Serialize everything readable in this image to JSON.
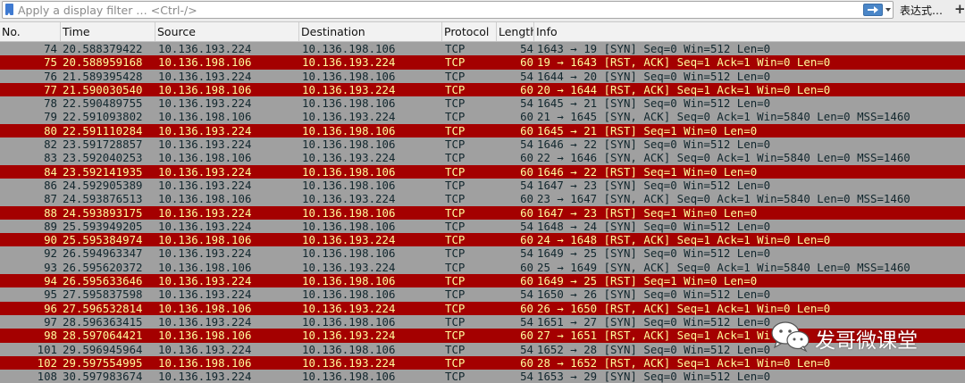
{
  "filter": {
    "placeholder": "Apply a display filter … <Ctrl-/>",
    "expression_label": "表达式…",
    "add_label": "+"
  },
  "columns": [
    "No.",
    "Time",
    "Source",
    "Destination",
    "Protocol",
    "Length",
    "Info"
  ],
  "colors": {
    "rst_row_bg": "#a40000",
    "rst_row_fg": "#fffc9c",
    "syn_row_bg": "#a0a0a0",
    "syn_row_fg": "#12272e"
  },
  "packets": [
    {
      "no": "74",
      "time": "20.588379422",
      "src": "10.136.193.224",
      "dst": "10.136.198.106",
      "proto": "TCP",
      "len": "54",
      "info": "1643 → 19 [SYN] Seq=0 Win=512 Len=0",
      "kind": "syn"
    },
    {
      "no": "75",
      "time": "20.588959168",
      "src": "10.136.198.106",
      "dst": "10.136.193.224",
      "proto": "TCP",
      "len": "60",
      "info": "19 → 1643 [RST, ACK] Seq=1 Ack=1 Win=0 Len=0",
      "kind": "rst"
    },
    {
      "no": "76",
      "time": "21.589395428",
      "src": "10.136.193.224",
      "dst": "10.136.198.106",
      "proto": "TCP",
      "len": "54",
      "info": "1644 → 20 [SYN] Seq=0 Win=512 Len=0",
      "kind": "syn"
    },
    {
      "no": "77",
      "time": "21.590030540",
      "src": "10.136.198.106",
      "dst": "10.136.193.224",
      "proto": "TCP",
      "len": "60",
      "info": "20 → 1644 [RST, ACK] Seq=1 Ack=1 Win=0 Len=0",
      "kind": "rst"
    },
    {
      "no": "78",
      "time": "22.590489755",
      "src": "10.136.193.224",
      "dst": "10.136.198.106",
      "proto": "TCP",
      "len": "54",
      "info": "1645 → 21 [SYN] Seq=0 Win=512 Len=0",
      "kind": "syn"
    },
    {
      "no": "79",
      "time": "22.591093802",
      "src": "10.136.198.106",
      "dst": "10.136.193.224",
      "proto": "TCP",
      "len": "60",
      "info": "21 → 1645 [SYN, ACK] Seq=0 Ack=1 Win=5840 Len=0 MSS=1460",
      "kind": "syn"
    },
    {
      "no": "80",
      "time": "22.591110284",
      "src": "10.136.193.224",
      "dst": "10.136.198.106",
      "proto": "TCP",
      "len": "60",
      "info": "1645 → 21 [RST] Seq=1 Win=0 Len=0",
      "kind": "rst"
    },
    {
      "no": "82",
      "time": "23.591728857",
      "src": "10.136.193.224",
      "dst": "10.136.198.106",
      "proto": "TCP",
      "len": "54",
      "info": "1646 → 22 [SYN] Seq=0 Win=512 Len=0",
      "kind": "syn"
    },
    {
      "no": "83",
      "time": "23.592040253",
      "src": "10.136.198.106",
      "dst": "10.136.193.224",
      "proto": "TCP",
      "len": "60",
      "info": "22 → 1646 [SYN, ACK] Seq=0 Ack=1 Win=5840 Len=0 MSS=1460",
      "kind": "syn"
    },
    {
      "no": "84",
      "time": "23.592141935",
      "src": "10.136.193.224",
      "dst": "10.136.198.106",
      "proto": "TCP",
      "len": "60",
      "info": "1646 → 22 [RST] Seq=1 Win=0 Len=0",
      "kind": "rst"
    },
    {
      "no": "86",
      "time": "24.592905389",
      "src": "10.136.193.224",
      "dst": "10.136.198.106",
      "proto": "TCP",
      "len": "54",
      "info": "1647 → 23 [SYN] Seq=0 Win=512 Len=0",
      "kind": "syn"
    },
    {
      "no": "87",
      "time": "24.593876513",
      "src": "10.136.198.106",
      "dst": "10.136.193.224",
      "proto": "TCP",
      "len": "60",
      "info": "23 → 1647 [SYN, ACK] Seq=0 Ack=1 Win=5840 Len=0 MSS=1460",
      "kind": "syn"
    },
    {
      "no": "88",
      "time": "24.593893175",
      "src": "10.136.193.224",
      "dst": "10.136.198.106",
      "proto": "TCP",
      "len": "60",
      "info": "1647 → 23 [RST] Seq=1 Win=0 Len=0",
      "kind": "rst"
    },
    {
      "no": "89",
      "time": "25.593949205",
      "src": "10.136.193.224",
      "dst": "10.136.198.106",
      "proto": "TCP",
      "len": "54",
      "info": "1648 → 24 [SYN] Seq=0 Win=512 Len=0",
      "kind": "syn"
    },
    {
      "no": "90",
      "time": "25.595384974",
      "src": "10.136.198.106",
      "dst": "10.136.193.224",
      "proto": "TCP",
      "len": "60",
      "info": "24 → 1648 [RST, ACK] Seq=1 Ack=1 Win=0 Len=0",
      "kind": "rst"
    },
    {
      "no": "92",
      "time": "26.594963347",
      "src": "10.136.193.224",
      "dst": "10.136.198.106",
      "proto": "TCP",
      "len": "54",
      "info": "1649 → 25 [SYN] Seq=0 Win=512 Len=0",
      "kind": "syn"
    },
    {
      "no": "93",
      "time": "26.595620372",
      "src": "10.136.198.106",
      "dst": "10.136.193.224",
      "proto": "TCP",
      "len": "60",
      "info": "25 → 1649 [SYN, ACK] Seq=0 Ack=1 Win=5840 Len=0 MSS=1460",
      "kind": "syn"
    },
    {
      "no": "94",
      "time": "26.595633646",
      "src": "10.136.193.224",
      "dst": "10.136.198.106",
      "proto": "TCP",
      "len": "60",
      "info": "1649 → 25 [RST] Seq=1 Win=0 Len=0",
      "kind": "rst"
    },
    {
      "no": "95",
      "time": "27.595837598",
      "src": "10.136.193.224",
      "dst": "10.136.198.106",
      "proto": "TCP",
      "len": "54",
      "info": "1650 → 26 [SYN] Seq=0 Win=512 Len=0",
      "kind": "syn"
    },
    {
      "no": "96",
      "time": "27.596532814",
      "src": "10.136.198.106",
      "dst": "10.136.193.224",
      "proto": "TCP",
      "len": "60",
      "info": "26 → 1650 [RST, ACK] Seq=1 Ack=1 Win=0 Len=0",
      "kind": "rst"
    },
    {
      "no": "97",
      "time": "28.596363415",
      "src": "10.136.193.224",
      "dst": "10.136.198.106",
      "proto": "TCP",
      "len": "54",
      "info": "1651 → 27 [SYN] Seq=0 Win=512 Len=0",
      "kind": "syn"
    },
    {
      "no": "98",
      "time": "28.597064421",
      "src": "10.136.198.106",
      "dst": "10.136.193.224",
      "proto": "TCP",
      "len": "60",
      "info": "27 → 1651 [RST, ACK] Seq=1 Ack=1 Wi",
      "kind": "rst"
    },
    {
      "no": "101",
      "time": "29.596945964",
      "src": "10.136.193.224",
      "dst": "10.136.198.106",
      "proto": "TCP",
      "len": "54",
      "info": "1652 → 28 [SYN] Seq=0 Win=512 Len=0",
      "kind": "syn"
    },
    {
      "no": "102",
      "time": "29.597554995",
      "src": "10.136.198.106",
      "dst": "10.136.193.224",
      "proto": "TCP",
      "len": "60",
      "info": "28 → 1652 [RST, ACK] Seq=1 Ack=1 Win=0 Len=0",
      "kind": "rst"
    },
    {
      "no": "108",
      "time": "30.597983674",
      "src": "10.136.193.224",
      "dst": "10.136.198.106",
      "proto": "TCP",
      "len": "54",
      "info": "1653 → 29 [SYN] Seq=0 Win=512 Len=0",
      "kind": "syn"
    }
  ],
  "watermark": {
    "text": "发哥微课堂",
    "icon": "wechat-icon"
  }
}
